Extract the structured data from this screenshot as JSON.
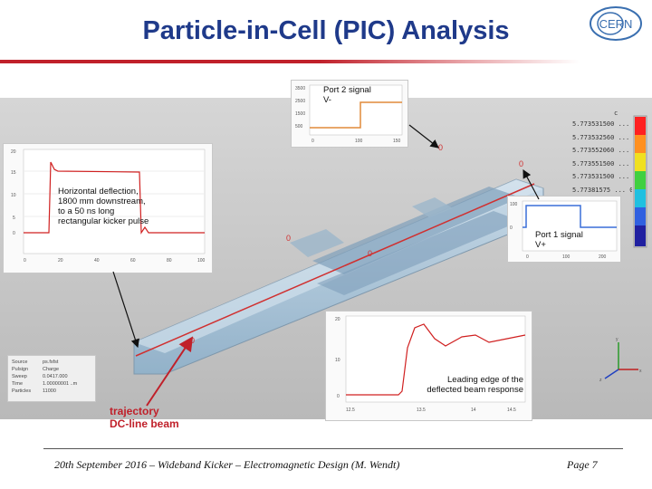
{
  "slide": {
    "title": "Particle-in-Cell (PIC) Analysis",
    "logo_text": "CERN"
  },
  "annotations": {
    "port2": [
      "Port 2 signal",
      "V-"
    ],
    "port1": [
      "Port 1 signal",
      "V+"
    ],
    "deflection": [
      "Horizontal deflection,",
      "1800 mm downstream,",
      "to a 50 ns long",
      "rectangular kicker pulse"
    ],
    "leading_edge": [
      "Leading edge of the",
      "deflected beam response"
    ],
    "trajectory": [
      "trajectory",
      "DC-line beam"
    ]
  },
  "legend": {
    "header": "c",
    "rows": [
      "5.773531500 ... 0.1",
      "5.773532560 ... 0.1",
      "5.773552060 ... 0.1",
      "5.773551500 ... 0.1",
      "5.773531500 ... 0.1",
      "5.77381575 ... 0.1"
    ]
  },
  "info_panel": {
    "rows": [
      [
        "Source",
        "ps.fsfst"
      ],
      [
        "Pulsign",
        "Charge"
      ],
      [
        "Sweep",
        "0.0417.000"
      ],
      [
        "Time",
        "1.00000001  ..m"
      ],
      [
        "Particles",
        "11000"
      ]
    ]
  },
  "footer": {
    "left": "20th September 2016 – Wideband Kicker – Electromagnetic Design (M. Wendt)",
    "right": "Page 7"
  },
  "colors": {
    "title": "#1f3a8a",
    "accent_red": "#c0202a",
    "trace_orange": "#e08a3a",
    "trace_blue": "#3a6fd8",
    "structure_blue": "#9fbfd8"
  }
}
